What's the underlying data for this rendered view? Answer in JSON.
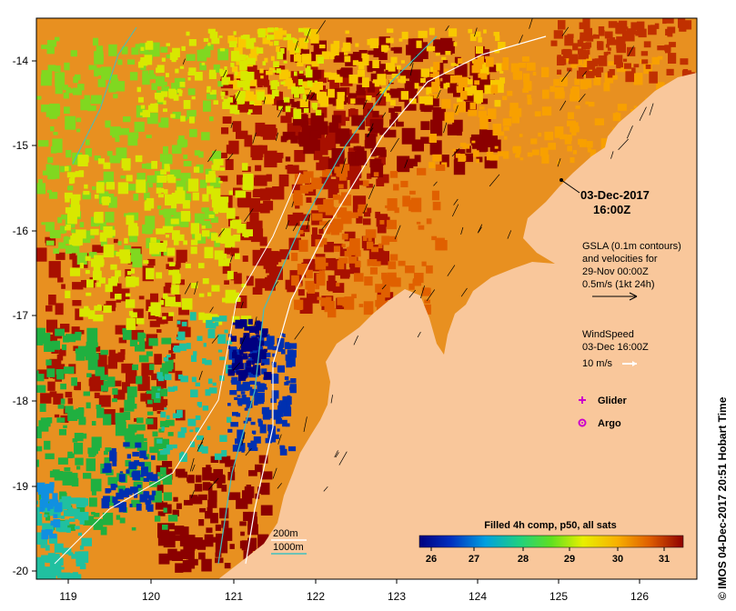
{
  "map": {
    "x_ticks": [
      "119",
      "120",
      "121",
      "122",
      "123",
      "124",
      "125",
      "126"
    ],
    "y_ticks": [
      "-14",
      "-15",
      "-16",
      "-17",
      "-18",
      "-19",
      "-20"
    ],
    "date_line1": "03-Dec-2017",
    "date_line2": "16:00Z",
    "gsla_lines": [
      "GSLA (0.1m contours)",
      "and velocities for",
      "29-Nov 00:00Z",
      "0.5m/s (1kt 24h)"
    ],
    "wind_title": "WindSpeed",
    "wind_date": "03-Dec 16:00Z",
    "wind_scale": "10 m/s",
    "glider_label": "Glider",
    "argo_label": "Argo",
    "depth_200": "200m",
    "depth_1000": "1000m",
    "colorbar_title": "Filled 4h comp, p50, all sats",
    "colorbar_ticks": [
      "26",
      "27",
      "28",
      "29",
      "30",
      "31"
    ],
    "side_text": "© IMOS 04-Dec-2017 20:51 Hobart Time",
    "colors": {
      "land": "#f9c79b",
      "glider": "#cc00cc",
      "argo": "#cc00cc",
      "contour_200": "#ffffff",
      "contour_1000": "#40c0c0"
    }
  }
}
